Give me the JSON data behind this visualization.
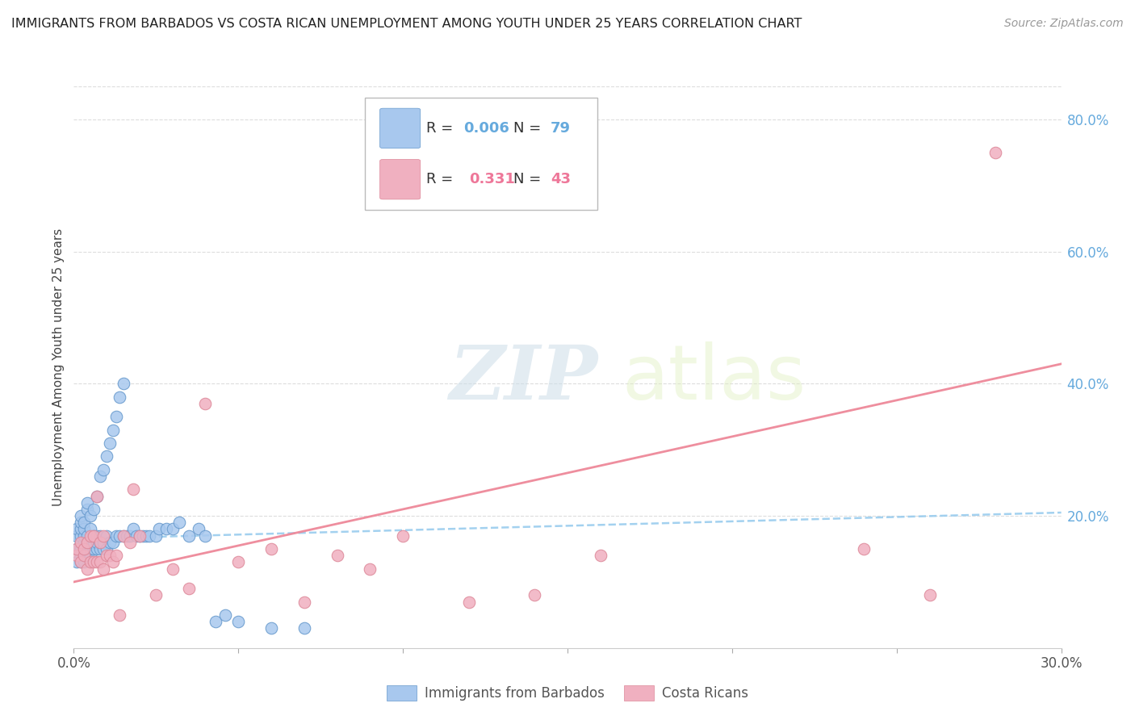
{
  "title": "IMMIGRANTS FROM BARBADOS VS COSTA RICAN UNEMPLOYMENT AMONG YOUTH UNDER 25 YEARS CORRELATION CHART",
  "source": "Source: ZipAtlas.com",
  "ylabel": "Unemployment Among Youth under 25 years",
  "xlim": [
    0.0,
    0.3
  ],
  "ylim": [
    0.0,
    0.85
  ],
  "yticks": [
    0.0,
    0.2,
    0.4,
    0.6,
    0.8
  ],
  "ytick_labels": [
    "",
    "20.0%",
    "40.0%",
    "60.0%",
    "80.0%"
  ],
  "xticks": [
    0.0,
    0.05,
    0.1,
    0.15,
    0.2,
    0.25,
    0.3
  ],
  "xtick_labels": [
    "0.0%",
    "",
    "",
    "",
    "",
    "",
    "30.0%"
  ],
  "watermark_zip": "ZIP",
  "watermark_atlas": "atlas",
  "color_blue": "#a8c8ee",
  "color_blue_edge": "#6699cc",
  "color_pink": "#f0b0c0",
  "color_pink_edge": "#dd8899",
  "color_blue_line": "#99ccee",
  "color_pink_line": "#ee8899",
  "color_right_label": "#66aadd",
  "color_pink_legend": "#ee7799",
  "blue_scatter_x": [
    0.001,
    0.001,
    0.001,
    0.001,
    0.002,
    0.002,
    0.002,
    0.002,
    0.002,
    0.002,
    0.002,
    0.002,
    0.003,
    0.003,
    0.003,
    0.003,
    0.003,
    0.003,
    0.003,
    0.004,
    0.004,
    0.004,
    0.004,
    0.004,
    0.004,
    0.005,
    0.005,
    0.005,
    0.005,
    0.005,
    0.006,
    0.006,
    0.006,
    0.006,
    0.007,
    0.007,
    0.007,
    0.007,
    0.008,
    0.008,
    0.008,
    0.008,
    0.009,
    0.009,
    0.009,
    0.01,
    0.01,
    0.01,
    0.011,
    0.011,
    0.012,
    0.012,
    0.013,
    0.013,
    0.014,
    0.014,
    0.015,
    0.015,
    0.016,
    0.017,
    0.018,
    0.019,
    0.02,
    0.021,
    0.022,
    0.023,
    0.025,
    0.026,
    0.028,
    0.03,
    0.032,
    0.035,
    0.038,
    0.04,
    0.043,
    0.046,
    0.05,
    0.06,
    0.07
  ],
  "blue_scatter_y": [
    0.15,
    0.17,
    0.18,
    0.13,
    0.15,
    0.16,
    0.17,
    0.13,
    0.14,
    0.18,
    0.19,
    0.2,
    0.14,
    0.15,
    0.16,
    0.17,
    0.18,
    0.19,
    0.13,
    0.14,
    0.15,
    0.16,
    0.17,
    0.21,
    0.22,
    0.14,
    0.15,
    0.16,
    0.18,
    0.2,
    0.15,
    0.16,
    0.17,
    0.21,
    0.15,
    0.16,
    0.17,
    0.23,
    0.15,
    0.16,
    0.17,
    0.26,
    0.15,
    0.16,
    0.27,
    0.15,
    0.17,
    0.29,
    0.16,
    0.31,
    0.16,
    0.33,
    0.17,
    0.35,
    0.17,
    0.38,
    0.17,
    0.4,
    0.17,
    0.17,
    0.18,
    0.17,
    0.17,
    0.17,
    0.17,
    0.17,
    0.17,
    0.18,
    0.18,
    0.18,
    0.19,
    0.17,
    0.18,
    0.17,
    0.04,
    0.05,
    0.04,
    0.03,
    0.03
  ],
  "pink_scatter_x": [
    0.001,
    0.001,
    0.002,
    0.002,
    0.003,
    0.003,
    0.004,
    0.004,
    0.005,
    0.005,
    0.006,
    0.006,
    0.007,
    0.007,
    0.008,
    0.008,
    0.009,
    0.009,
    0.01,
    0.011,
    0.012,
    0.013,
    0.014,
    0.015,
    0.017,
    0.018,
    0.02,
    0.025,
    0.03,
    0.035,
    0.04,
    0.05,
    0.06,
    0.07,
    0.08,
    0.09,
    0.1,
    0.12,
    0.14,
    0.16,
    0.24,
    0.26,
    0.28
  ],
  "pink_scatter_y": [
    0.14,
    0.15,
    0.13,
    0.16,
    0.14,
    0.15,
    0.12,
    0.16,
    0.13,
    0.17,
    0.13,
    0.17,
    0.13,
    0.23,
    0.13,
    0.16,
    0.12,
    0.17,
    0.14,
    0.14,
    0.13,
    0.14,
    0.05,
    0.17,
    0.16,
    0.24,
    0.17,
    0.08,
    0.12,
    0.09,
    0.37,
    0.13,
    0.15,
    0.07,
    0.14,
    0.12,
    0.17,
    0.07,
    0.08,
    0.14,
    0.15,
    0.08,
    0.75
  ],
  "blue_trend_x": [
    0.0,
    0.3
  ],
  "blue_trend_y": [
    0.165,
    0.205
  ],
  "pink_trend_x": [
    0.0,
    0.3
  ],
  "pink_trend_y": [
    0.1,
    0.43
  ]
}
